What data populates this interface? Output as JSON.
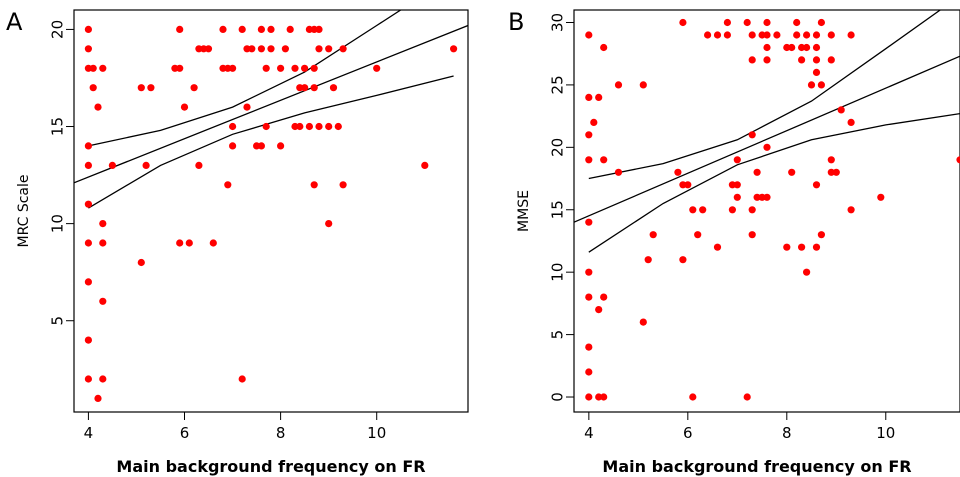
{
  "chart_data": [
    {
      "type": "scatter",
      "panel_label": "A",
      "title": "",
      "xlabel": "Main background frequency on FR",
      "ylabel": "MRC Scale",
      "xlim": [
        3.7,
        11.9
      ],
      "ylim": [
        0.3,
        21
      ],
      "xticks": [
        4,
        6,
        8,
        10
      ],
      "yticks": [
        5,
        10,
        15,
        20
      ],
      "point_color": "#ff0000",
      "grid": false,
      "points": [
        [
          4,
          20
        ],
        [
          4,
          19
        ],
        [
          4,
          18
        ],
        [
          4,
          14
        ],
        [
          4,
          13
        ],
        [
          4,
          11
        ],
        [
          4,
          9
        ],
        [
          4,
          7
        ],
        [
          4,
          4
        ],
        [
          4,
          2
        ],
        [
          4.1,
          17
        ],
        [
          4.1,
          18
        ],
        [
          4.2,
          16
        ],
        [
          4.2,
          1
        ],
        [
          4.3,
          18
        ],
        [
          4.3,
          10
        ],
        [
          4.3,
          9
        ],
        [
          4.3,
          6
        ],
        [
          4.3,
          2
        ],
        [
          4.5,
          13
        ],
        [
          5.1,
          17
        ],
        [
          5.1,
          8
        ],
        [
          5.2,
          13
        ],
        [
          5.3,
          17
        ],
        [
          5.8,
          18
        ],
        [
          5.9,
          18
        ],
        [
          5.9,
          20
        ],
        [
          5.9,
          9
        ],
        [
          6.0,
          16
        ],
        [
          6.1,
          9
        ],
        [
          6.2,
          17
        ],
        [
          6.3,
          19
        ],
        [
          6.3,
          13
        ],
        [
          6.4,
          19
        ],
        [
          6.5,
          19
        ],
        [
          6.6,
          9
        ],
        [
          6.8,
          20
        ],
        [
          6.8,
          18
        ],
        [
          6.9,
          18
        ],
        [
          6.9,
          12
        ],
        [
          7.0,
          18
        ],
        [
          7.0,
          15
        ],
        [
          7.0,
          14
        ],
        [
          7.2,
          20
        ],
        [
          7.2,
          2
        ],
        [
          7.3,
          19
        ],
        [
          7.3,
          16
        ],
        [
          7.4,
          19
        ],
        [
          7.5,
          14
        ],
        [
          7.6,
          20
        ],
        [
          7.6,
          19
        ],
        [
          7.6,
          14
        ],
        [
          7.7,
          18
        ],
        [
          7.7,
          15
        ],
        [
          7.8,
          20
        ],
        [
          7.8,
          19
        ],
        [
          8.0,
          18
        ],
        [
          8.0,
          14
        ],
        [
          8.1,
          19
        ],
        [
          8.2,
          20
        ],
        [
          8.3,
          18
        ],
        [
          8.3,
          15
        ],
        [
          8.4,
          17
        ],
        [
          8.4,
          15
        ],
        [
          8.5,
          18
        ],
        [
          8.5,
          17
        ],
        [
          8.6,
          20
        ],
        [
          8.6,
          15
        ],
        [
          8.7,
          20
        ],
        [
          8.7,
          18
        ],
        [
          8.7,
          17
        ],
        [
          8.7,
          12
        ],
        [
          8.8,
          20
        ],
        [
          8.8,
          19
        ],
        [
          8.8,
          15
        ],
        [
          9.0,
          19
        ],
        [
          9.0,
          15
        ],
        [
          9.0,
          10
        ],
        [
          9.1,
          17
        ],
        [
          9.2,
          15
        ],
        [
          9.3,
          19
        ],
        [
          9.3,
          12
        ],
        [
          10.0,
          18
        ],
        [
          11.0,
          13
        ],
        [
          11.6,
          19
        ]
      ],
      "fit_lines": [
        {
          "name": "fit",
          "x": [
            3.7,
            11.9
          ],
          "y": [
            12.1,
            20.2
          ]
        },
        {
          "name": "upper-band",
          "x": [
            4.0,
            5.5,
            7.0,
            8.5,
            10.0,
            10.5
          ],
          "y": [
            14.0,
            14.8,
            16.0,
            17.8,
            20.2,
            21.0
          ]
        },
        {
          "name": "lower-band",
          "x": [
            4.0,
            5.5,
            7.0,
            8.5,
            10.0,
            11.6
          ],
          "y": [
            10.8,
            13.0,
            14.6,
            15.7,
            16.6,
            17.6
          ]
        }
      ]
    },
    {
      "type": "scatter",
      "panel_label": "B",
      "title": "",
      "xlabel": "Main background frequency on FR",
      "ylabel": "MMSE",
      "xlim": [
        3.7,
        11.5
      ],
      "ylim": [
        -1.2,
        31
      ],
      "xticks": [
        4,
        6,
        8,
        10
      ],
      "yticks": [
        0,
        5,
        10,
        15,
        20,
        25,
        30
      ],
      "point_color": "#ff0000",
      "grid": false,
      "points": [
        [
          4,
          29
        ],
        [
          4,
          24
        ],
        [
          4,
          21
        ],
        [
          4,
          19
        ],
        [
          4,
          14
        ],
        [
          4,
          10
        ],
        [
          4,
          8
        ],
        [
          4,
          4
        ],
        [
          4,
          2
        ],
        [
          4,
          0
        ],
        [
          4.1,
          22
        ],
        [
          4.2,
          24
        ],
        [
          4.2,
          7
        ],
        [
          4.2,
          0
        ],
        [
          4.3,
          28
        ],
        [
          4.3,
          19
        ],
        [
          4.3,
          8
        ],
        [
          4.3,
          0
        ],
        [
          4.6,
          18
        ],
        [
          4.6,
          25
        ],
        [
          5.1,
          25
        ],
        [
          5.1,
          6
        ],
        [
          5.2,
          11
        ],
        [
          5.3,
          13
        ],
        [
          5.8,
          18
        ],
        [
          5.9,
          30
        ],
        [
          5.9,
          17
        ],
        [
          5.9,
          11
        ],
        [
          6.0,
          17
        ],
        [
          6.1,
          15
        ],
        [
          6.1,
          0
        ],
        [
          6.2,
          13
        ],
        [
          6.3,
          15
        ],
        [
          6.4,
          29
        ],
        [
          6.6,
          29
        ],
        [
          6.6,
          12
        ],
        [
          6.8,
          30
        ],
        [
          6.8,
          29
        ],
        [
          6.9,
          17
        ],
        [
          6.9,
          15
        ],
        [
          7.0,
          19
        ],
        [
          7.0,
          17
        ],
        [
          7.0,
          16
        ],
        [
          7.2,
          30
        ],
        [
          7.2,
          0
        ],
        [
          7.3,
          29
        ],
        [
          7.3,
          27
        ],
        [
          7.3,
          21
        ],
        [
          7.3,
          15
        ],
        [
          7.3,
          13
        ],
        [
          7.4,
          16
        ],
        [
          7.4,
          18
        ],
        [
          7.5,
          29
        ],
        [
          7.5,
          16
        ],
        [
          7.6,
          30
        ],
        [
          7.6,
          29
        ],
        [
          7.6,
          28
        ],
        [
          7.6,
          27
        ],
        [
          7.6,
          20
        ],
        [
          7.6,
          16
        ],
        [
          7.8,
          29
        ],
        [
          8.0,
          28
        ],
        [
          8.0,
          12
        ],
        [
          8.1,
          28
        ],
        [
          8.1,
          18
        ],
        [
          8.2,
          30
        ],
        [
          8.2,
          29
        ],
        [
          8.3,
          28
        ],
        [
          8.3,
          27
        ],
        [
          8.3,
          12
        ],
        [
          8.4,
          29
        ],
        [
          8.4,
          28
        ],
        [
          8.4,
          10
        ],
        [
          8.5,
          25
        ],
        [
          8.6,
          29
        ],
        [
          8.6,
          28
        ],
        [
          8.6,
          27
        ],
        [
          8.6,
          26
        ],
        [
          8.6,
          17
        ],
        [
          8.6,
          12
        ],
        [
          8.7,
          30
        ],
        [
          8.7,
          25
        ],
        [
          8.7,
          13
        ],
        [
          8.9,
          29
        ],
        [
          8.9,
          19
        ],
        [
          8.9,
          18
        ],
        [
          8.9,
          27
        ],
        [
          9.0,
          18
        ],
        [
          9.1,
          23
        ],
        [
          9.3,
          29
        ],
        [
          9.3,
          22
        ],
        [
          9.3,
          15
        ],
        [
          9.9,
          16
        ],
        [
          11.5,
          19
        ]
      ],
      "fit_lines": [
        {
          "name": "fit",
          "x": [
            3.7,
            11.5
          ],
          "y": [
            14.0,
            27.3
          ]
        },
        {
          "name": "upper-band",
          "x": [
            4.0,
            5.5,
            7.0,
            8.5,
            10.0,
            11.1
          ],
          "y": [
            17.5,
            18.7,
            20.6,
            23.7,
            27.9,
            31.0
          ]
        },
        {
          "name": "lower-band",
          "x": [
            4.0,
            5.5,
            7.0,
            8.5,
            10.0,
            11.5
          ],
          "y": [
            11.6,
            15.5,
            18.6,
            20.6,
            21.8,
            22.7
          ]
        }
      ]
    }
  ]
}
